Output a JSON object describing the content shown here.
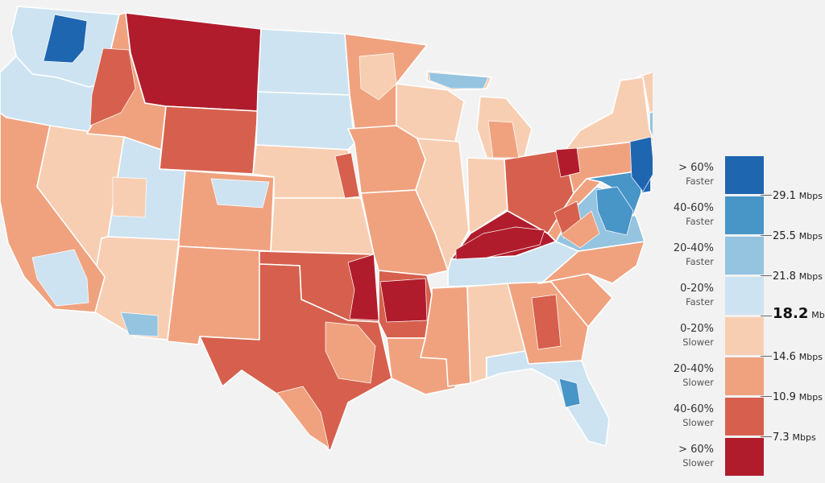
{
  "colors": {
    "faster_60": "#1f66b1",
    "faster_40_60": "#4895c8",
    "faster_20_40": "#94c4e0",
    "faster_0_20": "#cde3f1",
    "slower_0_20": "#f8ceb2",
    "slower_20_40": "#f0a27f",
    "slower_40_60": "#d6604d",
    "slower_60": "#b11c2d",
    "border": "#ffffff",
    "background": "#f2f2f2"
  },
  "legend": {
    "categories": [
      {
        "range": "> 60%",
        "direction": "Faster",
        "color_key": "faster_60"
      },
      {
        "range": "40-60%",
        "direction": "Faster",
        "color_key": "faster_40_60"
      },
      {
        "range": "20-40%",
        "direction": "Faster",
        "color_key": "faster_20_40"
      },
      {
        "range": "0-20%",
        "direction": "Faster",
        "color_key": "faster_0_20"
      },
      {
        "range": "0-20%",
        "direction": "Slower",
        "color_key": "slower_0_20"
      },
      {
        "range": "20-40%",
        "direction": "Slower",
        "color_key": "slower_20_40"
      },
      {
        "range": "40-60%",
        "direction": "Slower",
        "color_key": "slower_40_60"
      },
      {
        "range": "> 60%",
        "direction": "Slower",
        "color_key": "slower_60"
      }
    ],
    "thresholds": [
      {
        "value": "29.1",
        "unit": "Mbps",
        "median": false
      },
      {
        "value": "25.5",
        "unit": "Mbps",
        "median": false
      },
      {
        "value": "21.8",
        "unit": "Mbps",
        "median": false
      },
      {
        "value": "18.2",
        "unit": "Mb",
        "median": true
      },
      {
        "value": "14.6",
        "unit": "Mbps",
        "median": false
      },
      {
        "value": "10.9",
        "unit": "Mbps",
        "median": false
      },
      {
        "value": "7.3",
        "unit": "Mbps",
        "median": false
      }
    ]
  },
  "regions": [
    {
      "name": "washington",
      "color_key": "faster_0_20"
    },
    {
      "name": "oregon",
      "color_key": "faster_0_20"
    },
    {
      "name": "california",
      "color_key": "slower_20_40"
    },
    {
      "name": "nevada",
      "color_key": "slower_0_20"
    },
    {
      "name": "idaho",
      "color_key": "slower_20_40"
    },
    {
      "name": "montana",
      "color_key": "slower_60"
    },
    {
      "name": "wyoming",
      "color_key": "slower_40_60"
    },
    {
      "name": "utah",
      "color_key": "faster_0_20"
    },
    {
      "name": "arizona",
      "color_key": "slower_0_20"
    },
    {
      "name": "colorado",
      "color_key": "slower_20_40"
    },
    {
      "name": "new-mexico",
      "color_key": "slower_20_40"
    },
    {
      "name": "north-dakota",
      "color_key": "faster_0_20"
    },
    {
      "name": "south-dakota",
      "color_key": "faster_0_20"
    },
    {
      "name": "nebraska",
      "color_key": "slower_0_20"
    },
    {
      "name": "kansas",
      "color_key": "slower_0_20"
    },
    {
      "name": "oklahoma",
      "color_key": "slower_40_60"
    },
    {
      "name": "texas",
      "color_key": "slower_40_60"
    },
    {
      "name": "minnesota",
      "color_key": "slower_20_40"
    },
    {
      "name": "iowa",
      "color_key": "slower_20_40"
    },
    {
      "name": "missouri",
      "color_key": "slower_20_40"
    },
    {
      "name": "arkansas",
      "color_key": "slower_40_60"
    },
    {
      "name": "louisiana",
      "color_key": "slower_20_40"
    },
    {
      "name": "wisconsin",
      "color_key": "slower_0_20"
    },
    {
      "name": "illinois",
      "color_key": "slower_0_20"
    },
    {
      "name": "michigan",
      "color_key": "slower_0_20"
    },
    {
      "name": "indiana",
      "color_key": "slower_0_20"
    },
    {
      "name": "ohio",
      "color_key": "slower_40_60"
    },
    {
      "name": "kentucky",
      "color_key": "slower_60"
    },
    {
      "name": "tennessee",
      "color_key": "faster_0_20"
    },
    {
      "name": "mississippi",
      "color_key": "slower_20_40"
    },
    {
      "name": "alabama",
      "color_key": "slower_0_20"
    },
    {
      "name": "georgia",
      "color_key": "slower_20_40"
    },
    {
      "name": "florida",
      "color_key": "faster_0_20"
    },
    {
      "name": "south-carolina",
      "color_key": "slower_20_40"
    },
    {
      "name": "north-carolina",
      "color_key": "slower_20_40"
    },
    {
      "name": "virginia",
      "color_key": "faster_20_40"
    },
    {
      "name": "west-virginia",
      "color_key": "slower_20_40"
    },
    {
      "name": "pennsylvania",
      "color_key": "slower_20_40"
    },
    {
      "name": "new-york",
      "color_key": "slower_0_20"
    },
    {
      "name": "new-jersey",
      "color_key": "faster_60"
    },
    {
      "name": "maryland",
      "color_key": "faster_40_60"
    },
    {
      "name": "vermont-nh",
      "color_key": "slower_0_20"
    },
    {
      "name": "maine",
      "color_key": "slower_40_60"
    },
    {
      "name": "massachusetts",
      "color_key": "faster_20_40"
    }
  ],
  "highlights": [
    {
      "name": "seattle-area",
      "color_key": "faster_60"
    },
    {
      "name": "nyc-area",
      "color_key": "faster_60"
    },
    {
      "name": "dc-area",
      "color_key": "faster_40_60"
    },
    {
      "name": "boston-area",
      "color_key": "faster_40_60"
    },
    {
      "name": "tampa-area",
      "color_key": "faster_40_60"
    },
    {
      "name": "oklahoma-east",
      "color_key": "slower_60"
    },
    {
      "name": "arkansas-north",
      "color_key": "slower_60"
    },
    {
      "name": "ohio-ne",
      "color_key": "slower_60"
    },
    {
      "name": "kentucky-west",
      "color_key": "slower_60"
    },
    {
      "name": "wv-east",
      "color_key": "slower_40_60"
    },
    {
      "name": "idaho-panhandle",
      "color_key": "slower_40_60"
    },
    {
      "name": "nebraska-east",
      "color_key": "slower_40_60"
    },
    {
      "name": "socal",
      "color_key": "faster_0_20"
    },
    {
      "name": "texas-south",
      "color_key": "slower_20_40"
    },
    {
      "name": "texas-east",
      "color_key": "slower_20_40"
    },
    {
      "name": "colorado-front",
      "color_key": "faster_0_20"
    },
    {
      "name": "minnesota-metro",
      "color_key": "slower_0_20"
    },
    {
      "name": "michigan-up",
      "color_key": "faster_20_40"
    },
    {
      "name": "michigan-lower-west",
      "color_key": "slower_20_40"
    },
    {
      "name": "georgia-central",
      "color_key": "slower_40_60"
    },
    {
      "name": "virginia-west",
      "color_key": "slower_20_40"
    },
    {
      "name": "arizona-south",
      "color_key": "faster_20_40"
    },
    {
      "name": "utah-west",
      "color_key": "slower_0_20"
    }
  ]
}
